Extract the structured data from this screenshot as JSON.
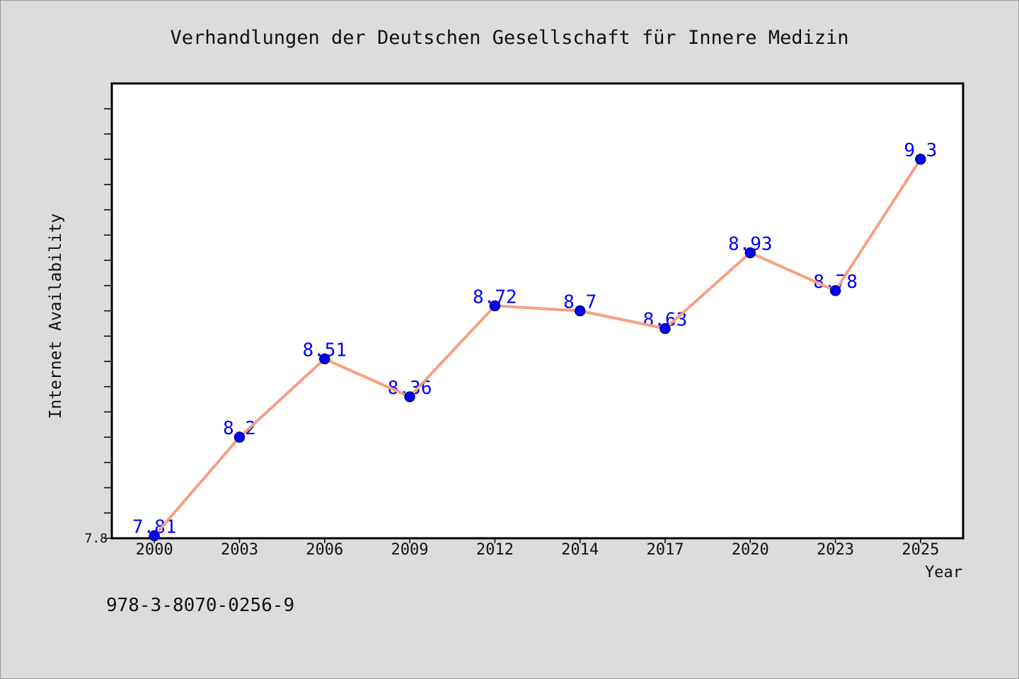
{
  "chart_data": {
    "type": "line",
    "title": "Verhandlungen der Deutschen Gesellschaft für Innere Medizin",
    "xlabel": "Year",
    "ylabel": "Internet Availability",
    "categories": [
      "2000",
      "2003",
      "2006",
      "2009",
      "2012",
      "2014",
      "2017",
      "2020",
      "2023",
      "2025"
    ],
    "series": [
      {
        "values": [
          7.81,
          8.2,
          8.51,
          8.36,
          8.72,
          8.7,
          8.63,
          8.93,
          8.78,
          9.3
        ],
        "data_labels": true
      }
    ],
    "ylim": [
      7.8,
      9.6
    ],
    "ytick_step": 0.1,
    "yticklabels": [
      {
        "value": 7.8,
        "label": "7.8"
      }
    ],
    "grid": false,
    "legend": "none",
    "colors": {
      "background": "#dcdcdc",
      "plot_background": "#ffffff",
      "axis": "#000000",
      "text": "#111111",
      "line": "#f6a07e",
      "marker": "#0000ff",
      "marker_edge": "#00008b",
      "data_label": "#0000ff"
    }
  },
  "footer": {
    "text": "978-3-8070-0256-9"
  }
}
